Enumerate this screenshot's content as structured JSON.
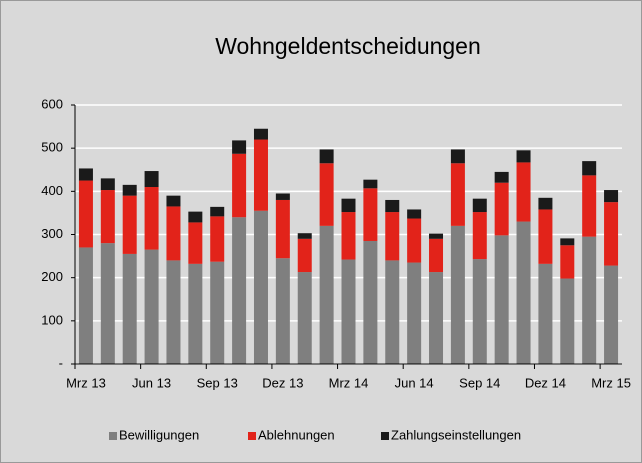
{
  "chart_data": {
    "type": "bar",
    "stacked": true,
    "title": "Wohngeldentscheidungen",
    "categories": [
      "Mrz 13",
      null,
      null,
      "Jun 13",
      null,
      null,
      "Sep 13",
      null,
      null,
      "Dez 13",
      null,
      null,
      "Mrz 14",
      null,
      null,
      "Jun 14",
      null,
      null,
      "Sep 14",
      null,
      null,
      "Dez 14",
      null,
      null,
      "Mrz 15"
    ],
    "series": [
      {
        "name": "Bewilligungen",
        "color": "#7f7f7f",
        "values": [
          270,
          280,
          255,
          265,
          240,
          232,
          237,
          340,
          355,
          245,
          213,
          320,
          242,
          285,
          240,
          235,
          213,
          320,
          243,
          298,
          330,
          232,
          198,
          295,
          228
        ]
      },
      {
        "name": "Ablehnungen",
        "color": "#e2231a",
        "values": [
          155,
          123,
          135,
          145,
          125,
          96,
          105,
          147,
          165,
          135,
          77,
          145,
          110,
          122,
          112,
          102,
          77,
          145,
          109,
          122,
          137,
          126,
          77,
          142,
          147
        ]
      },
      {
        "name": "Zahlungseinstellungen",
        "color": "#1a1a1a",
        "values": [
          28,
          27,
          25,
          37,
          25,
          25,
          22,
          31,
          25,
          15,
          13,
          32,
          31,
          20,
          28,
          21,
          12,
          32,
          31,
          25,
          28,
          27,
          16,
          33,
          28
        ]
      }
    ],
    "ylim": [
      0,
      600
    ],
    "yticks": [
      {
        "value": 0,
        "label": "-"
      },
      100,
      200,
      300,
      400,
      500,
      600
    ],
    "grid": true,
    "legend": "bottom"
  }
}
